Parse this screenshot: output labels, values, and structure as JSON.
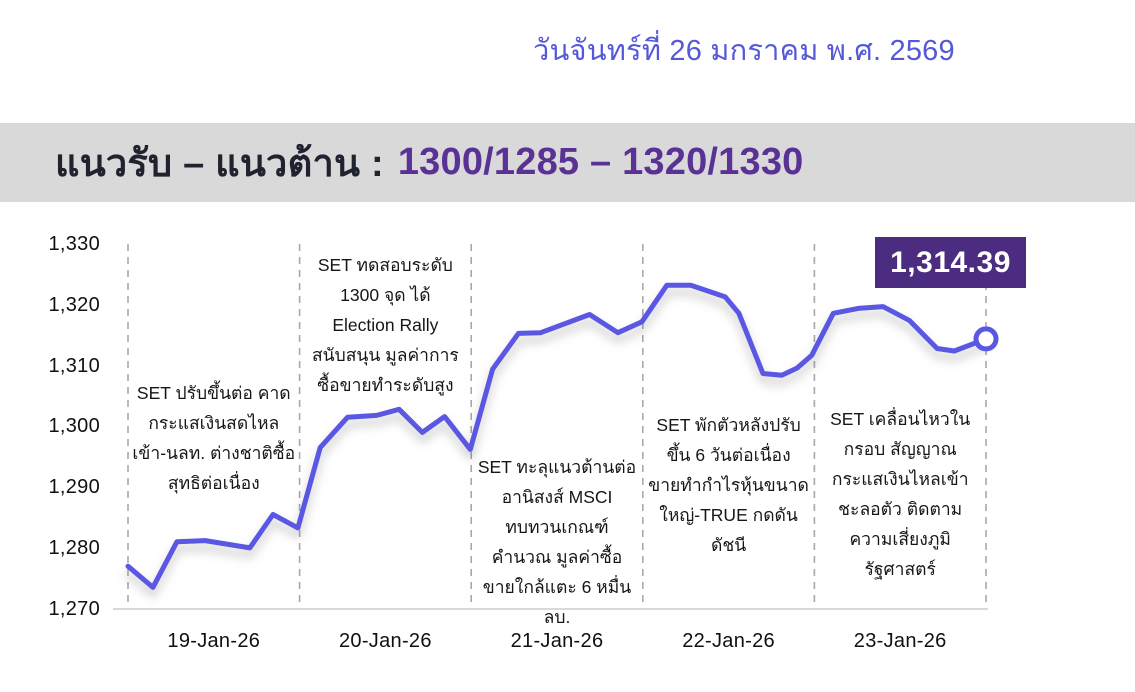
{
  "page": {
    "date_header": "วันจันทร์ที่ 26 มกราคม พ.ศ. 2569",
    "banner": {
      "label": "แนวรับ – แนวต้าน :",
      "levels": "1300/1285 – 1320/1330"
    },
    "colors": {
      "date_text": "#5558d8",
      "banner_bg": "#d9d9d9",
      "banner_label": "#20222f",
      "banner_levels": "#5a3194",
      "line": "#5a57e2",
      "badge_bg": "#4c2c80",
      "grid_dash": "#a9a9a9",
      "axis": "#d9d9d9"
    }
  },
  "chart_data": {
    "type": "line",
    "categories": [
      "19-Jan-26",
      "20-Jan-26",
      "21-Jan-26",
      "22-Jan-26",
      "23-Jan-26"
    ],
    "ylim": [
      1270,
      1330
    ],
    "y_ticks": [
      1330,
      1320,
      1310,
      1300,
      1290,
      1280,
      1270
    ],
    "y_tick_labels": [
      "1,330",
      "1,320",
      "1,310",
      "1,300",
      "1,290",
      "1,280",
      "1,270"
    ],
    "day_boundaries": [
      0,
      0.2,
      0.4,
      0.6,
      0.8,
      1.0
    ],
    "grid": "vertical-dashed-day-boundaries",
    "legend": "none",
    "last_value": 1314.39,
    "last_value_label": "1,314.39",
    "series": [
      {
        "name": "SET",
        "points": [
          [
            0.0,
            1277.0
          ],
          [
            0.029,
            1273.5
          ],
          [
            0.057,
            1281.0
          ],
          [
            0.09,
            1281.2
          ],
          [
            0.142,
            1280.0
          ],
          [
            0.169,
            1285.5
          ],
          [
            0.198,
            1283.3
          ],
          [
            0.224,
            1296.5
          ],
          [
            0.256,
            1301.5
          ],
          [
            0.29,
            1301.8
          ],
          [
            0.316,
            1302.8
          ],
          [
            0.343,
            1299.0
          ],
          [
            0.369,
            1301.6
          ],
          [
            0.399,
            1296.2
          ],
          [
            0.425,
            1309.4
          ],
          [
            0.455,
            1315.3
          ],
          [
            0.481,
            1315.4
          ],
          [
            0.538,
            1318.4
          ],
          [
            0.571,
            1315.4
          ],
          [
            0.599,
            1317.2
          ],
          [
            0.628,
            1323.2
          ],
          [
            0.656,
            1323.2
          ],
          [
            0.696,
            1321.3
          ],
          [
            0.712,
            1318.6
          ],
          [
            0.74,
            1308.7
          ],
          [
            0.762,
            1308.4
          ],
          [
            0.78,
            1309.6
          ],
          [
            0.797,
            1311.7
          ],
          [
            0.822,
            1318.6
          ],
          [
            0.851,
            1319.4
          ],
          [
            0.88,
            1319.7
          ],
          [
            0.911,
            1317.4
          ],
          [
            0.943,
            1312.8
          ],
          [
            0.963,
            1312.4
          ],
          [
            1.0,
            1314.39
          ]
        ]
      }
    ],
    "annotations": [
      {
        "day": "19-Jan-26",
        "lines": [
          "SET ปรับขึ้นต่อ คาด",
          "กระแสเงินสดไหล",
          "เข้า-นลท. ต่างชาติซื้อ",
          "สุทธิต่อเนื่อง"
        ]
      },
      {
        "day": "20-Jan-26",
        "lines": [
          "SET ทดสอบระดับ",
          "1300 จุด ได้",
          "Election Rally",
          "สนับสนุน มูลค่าการ",
          "ซื้อขายทำระดับสูง"
        ]
      },
      {
        "day": "21-Jan-26",
        "lines": [
          "SET ทะลุแนวต้านต่อ",
          "อานิสงส์ MSCI",
          "ทบทวนเกณฑ์",
          "คำนวณ มูลค่าซื้อ",
          "ขายใกล้แตะ 6 หมื่น",
          "ลบ."
        ]
      },
      {
        "day": "22-Jan-26",
        "lines": [
          "SET พักตัวหลังปรับ",
          "ขึ้น 6 วันต่อเนื่อง",
          "ขายทำกำไรหุ้นขนาด",
          "ใหญ่-TRUE กดดัน",
          "ดัชนี"
        ]
      },
      {
        "day": "23-Jan-26",
        "lines": [
          "SET เคลื่อนไหวใน",
          "กรอบ สัญญาณ",
          "กระแสเงินไหลเข้า",
          "ชะลอตัว ติดตาม",
          "ความเสี่ยงภูมิ",
          "รัฐศาสตร์"
        ]
      }
    ]
  }
}
